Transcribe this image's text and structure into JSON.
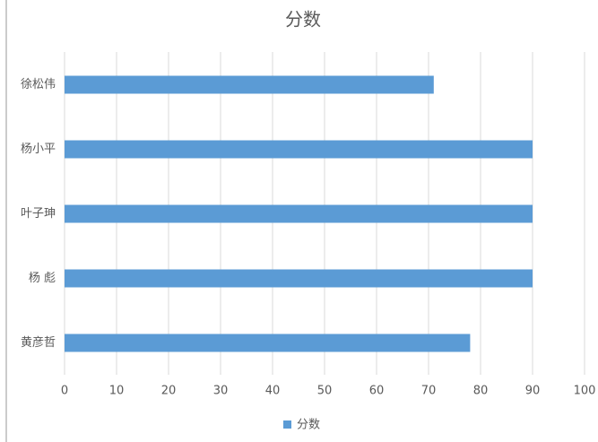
{
  "chart_data": {
    "type": "bar",
    "orientation": "horizontal",
    "title": "分数",
    "categories": [
      "徐松伟",
      "杨小平",
      "叶子珅",
      "杨 彪",
      "黄彦哲"
    ],
    "series": [
      {
        "name": "分数",
        "color": "#5b9bd5",
        "values": [
          71,
          90,
          90,
          90,
          78
        ]
      }
    ],
    "xlim": [
      0,
      100
    ],
    "xticks": [
      0,
      10,
      20,
      30,
      40,
      50,
      60,
      70,
      80,
      90,
      100
    ],
    "grid": true,
    "legend": "bottom"
  }
}
